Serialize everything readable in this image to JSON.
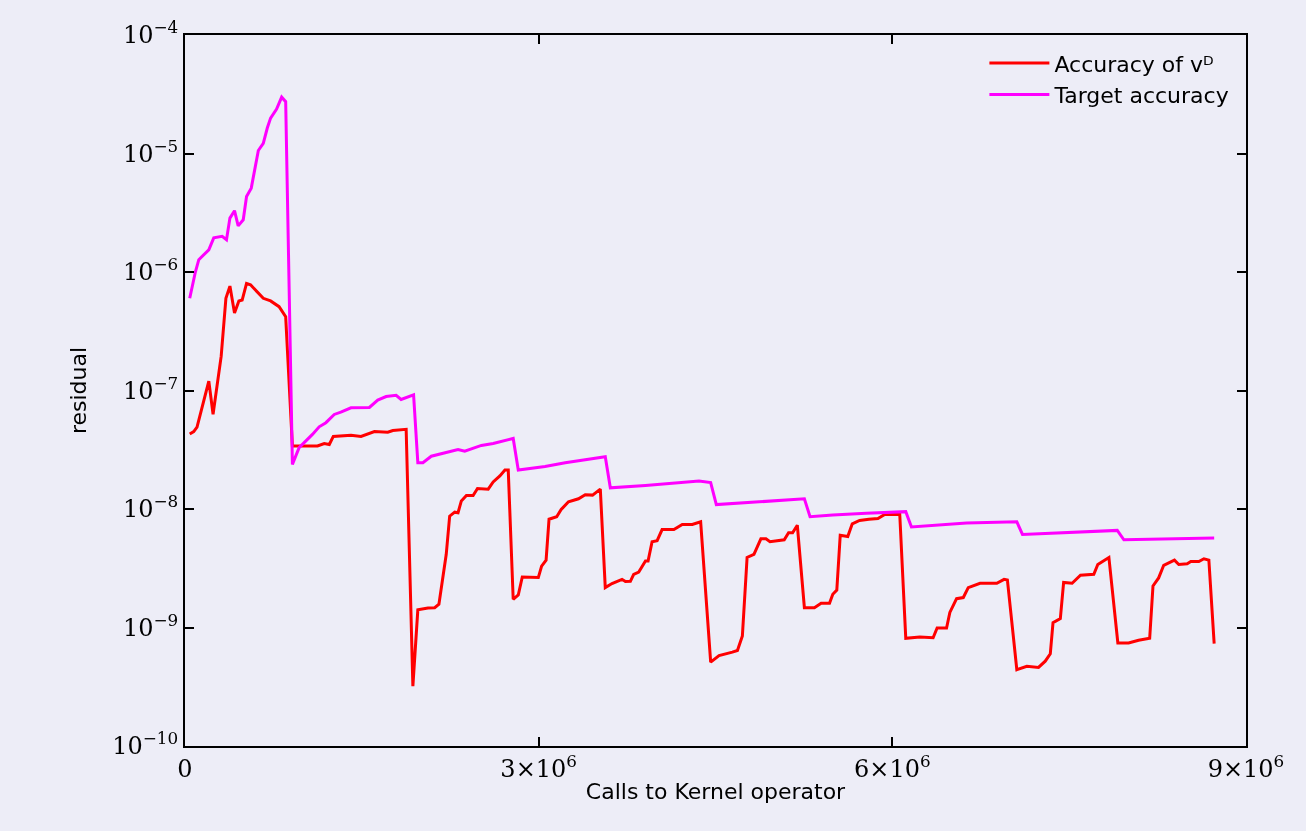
{
  "chart_data": {
    "type": "line",
    "xlabel": "Calls to Kernel operator",
    "ylabel": "residual",
    "log": "y",
    "grid": false,
    "legend": "top right",
    "marker": "none",
    "line_style": "solid",
    "xlim": [
      0,
      9000000
    ],
    "xticks": [
      0,
      {
        "value": 3000000,
        "label": "3×10$^{6}$"
      },
      {
        "value": 6000000,
        "label": "6×10$^{6}$"
      },
      {
        "value": 9000000,
        "label": "9×10$^{6}$"
      }
    ],
    "ylim": [
      1e-10,
      0.0001
    ],
    "yticks": [
      {
        "value": 1e-10,
        "label": "10$^{−10}$"
      },
      {
        "value": 1e-09,
        "label": "10$^{−9}$"
      },
      {
        "value": 1e-08,
        "label": "10$^{−8}$"
      },
      {
        "value": 1e-07,
        "label": "10$^{−7}$"
      },
      {
        "value": 1e-06,
        "label": "10$^{−6}$"
      },
      {
        "value": 1e-05,
        "label": "10$^{−5}$"
      },
      {
        "value": 0.0001,
        "label": "10$^{−4}$"
      }
    ],
    "series": [
      {
        "name": "Accuracy of vᴰ",
        "color": "#ff0000",
        "x": [
          40000,
          74000,
          102000,
          202000,
          238000,
          307000,
          347000,
          381000,
          420000,
          457000,
          485000,
          522000,
          556000,
          664000,
          726000,
          798000,
          854000,
          911000,
          1124000,
          1181000,
          1224000,
          1258000,
          1408000,
          1493000,
          1607000,
          1720000,
          1763000,
          1876000,
          1933000,
          1975000,
          2061000,
          2118000,
          2154000,
          2216000,
          2245000,
          2288000,
          2316000,
          2344000,
          2387000,
          2444000,
          2481000,
          2572000,
          2614000,
          2671000,
          2714000,
          2742000,
          2784000,
          2827000,
          2861000,
          2997000,
          3025000,
          3063000,
          3088000,
          3153000,
          3191000,
          3253000,
          3338000,
          3395000,
          3457000,
          3523000,
          3565000,
          3622000,
          3707000,
          3736000,
          3778000,
          3806000,
          3849000,
          3906000,
          3928000,
          3962000,
          4005000,
          4047000,
          4147000,
          4218000,
          4303000,
          4374000,
          4459000,
          4530000,
          4643000,
          4686000,
          4728000,
          4768000,
          4826000,
          4885000,
          4928000,
          4962000,
          5083000,
          5120000,
          5154000,
          5194000,
          5254000,
          5339000,
          5396000,
          5467000,
          5495000,
          5529000,
          5558000,
          5622000,
          5660000,
          5722000,
          5801000,
          5878000,
          5935000,
          6063000,
          6114000,
          6233000,
          6346000,
          6380000,
          6460000,
          6488000,
          6545000,
          6602000,
          6644000,
          6744000,
          6886000,
          6948000,
          6976000,
          7056000,
          7141000,
          7240000,
          7297000,
          7340000,
          7363000,
          7425000,
          7453000,
          7525000,
          7596000,
          7709000,
          7743000,
          7837000,
          7913000,
          8004000,
          8089000,
          8183000,
          8211000,
          8259000,
          8302000,
          8393000,
          8430000,
          8501000,
          8532000,
          8600000,
          8643000,
          8685000,
          8730000
        ],
        "values": [
          4.3e-08,
          4.5e-08,
          4.9e-08,
          1.2e-07,
          6.3e-08,
          1.95e-07,
          6e-07,
          7.6e-07,
          4.5e-07,
          5.7e-07,
          5.8e-07,
          8e-07,
          7.8e-07,
          6e-07,
          5.7e-07,
          5.1e-07,
          4.2e-07,
          3.4e-08,
          3.4e-08,
          3.57e-08,
          3.5e-08,
          4.1e-08,
          4.2e-08,
          4.1e-08,
          4.5e-08,
          4.45e-08,
          4.6e-08,
          4.7e-08,
          3.2e-10,
          1.41e-09,
          1.46e-09,
          1.47e-09,
          1.57e-09,
          4.15e-09,
          8.7e-09,
          9.4e-09,
          9.3e-09,
          1.17e-08,
          1.3e-08,
          1.3e-08,
          1.49e-08,
          1.47e-08,
          1.69e-08,
          1.9e-08,
          2.13e-08,
          2.13e-08,
          1.73e-09,
          1.88e-09,
          2.67e-09,
          2.64e-09,
          3.3e-09,
          3.7e-09,
          8.2e-09,
          8.6e-09,
          9.9e-09,
          1.15e-08,
          1.22e-08,
          1.32e-08,
          1.31e-08,
          1.47e-08,
          2.17e-09,
          2.35e-09,
          2.55e-09,
          2.44e-09,
          2.45e-09,
          2.81e-09,
          2.94e-09,
          3.64e-09,
          3.64e-09,
          5.3e-09,
          5.4e-09,
          6.7e-09,
          6.7e-09,
          7.4e-09,
          7.4e-09,
          7.8e-09,
          5.1e-10,
          5.8e-10,
          6.2e-10,
          6.4e-10,
          8.5e-10,
          3.9e-09,
          4.15e-09,
          5.6e-09,
          5.6e-09,
          5.3e-09,
          5.5e-09,
          6.3e-09,
          6.3e-09,
          7.3e-09,
          1.47e-09,
          1.47e-09,
          1.6e-09,
          1.6e-09,
          1.91e-09,
          2.07e-09,
          6e-09,
          5.85e-09,
          7.5e-09,
          8e-09,
          8.2e-09,
          8.3e-09,
          9e-09,
          9e-09,
          8.1e-10,
          8.3e-10,
          8.2e-10,
          9.9e-10,
          9.9e-10,
          1.34e-09,
          1.75e-09,
          1.79e-09,
          2.17e-09,
          2.36e-09,
          2.36e-09,
          2.55e-09,
          2.52e-09,
          4.4e-10,
          4.7e-10,
          4.6e-10,
          5.2e-10,
          6e-10,
          1.1e-09,
          1.19e-09,
          2.4e-09,
          2.36e-09,
          2.76e-09,
          2.81e-09,
          3.4e-09,
          3.9e-09,
          7.4e-10,
          7.4e-10,
          7.8e-10,
          8.1e-10,
          2.24e-09,
          2.62e-09,
          3.35e-09,
          3.7e-09,
          3.4e-09,
          3.45e-09,
          3.6e-09,
          3.6e-09,
          3.8e-09,
          3.7e-09,
          7.3e-10
        ]
      },
      {
        "name": "Target accuracy",
        "color": "#ff00ff",
        "x": [
          40000,
          88000,
          117000,
          202000,
          244000,
          315000,
          352000,
          381000,
          420000,
          451000,
          494000,
          522000,
          562000,
          622000,
          664000,
          698000,
          726000,
          777000,
          820000,
          854000,
          911000,
          968000,
          1081000,
          1138000,
          1195000,
          1266000,
          1322000,
          1408000,
          1564000,
          1635000,
          1706000,
          1791000,
          1833000,
          1939000,
          1975000,
          2018000,
          2089000,
          2316000,
          2373000,
          2514000,
          2614000,
          2784000,
          2827000,
          3054000,
          3225000,
          3565000,
          3608000,
          3906000,
          4360000,
          4459000,
          4507000,
          4871000,
          5254000,
          5302000,
          5495000,
          5779000,
          6114000,
          6162000,
          6630000,
          7056000,
          7104000,
          7908000,
          7964000,
          8730000
        ],
        "values": [
          6e-07,
          1e-06,
          1.27e-06,
          1.54e-06,
          1.94e-06,
          2e-06,
          1.87e-06,
          2.85e-06,
          3.29e-06,
          2.45e-06,
          2.76e-06,
          4.34e-06,
          5.1e-06,
          1.06e-05,
          1.22e-05,
          1.64e-05,
          1.99e-05,
          2.37e-05,
          2.99e-05,
          2.74e-05,
          2.38e-08,
          3.29e-08,
          4.26e-08,
          4.94e-08,
          5.35e-08,
          6.28e-08,
          6.56e-08,
          7.15e-08,
          7.2e-08,
          8.3e-08,
          8.9e-08,
          9.1e-08,
          8.4e-08,
          9.2e-08,
          2.46e-08,
          2.46e-08,
          2.79e-08,
          3.18e-08,
          3.08e-08,
          3.44e-08,
          3.57e-08,
          3.94e-08,
          2.13e-08,
          2.28e-08,
          2.46e-08,
          2.76e-08,
          1.51e-08,
          1.58e-08,
          1.72e-08,
          1.67e-08,
          1.09e-08,
          1.15e-08,
          1.22e-08,
          8.6e-09,
          8.9e-09,
          9.2e-09,
          9.5e-09,
          7.05e-09,
          7.6e-09,
          7.8e-09,
          6.1e-09,
          6.6e-09,
          5.5e-09,
          5.7e-09
        ]
      }
    ]
  }
}
